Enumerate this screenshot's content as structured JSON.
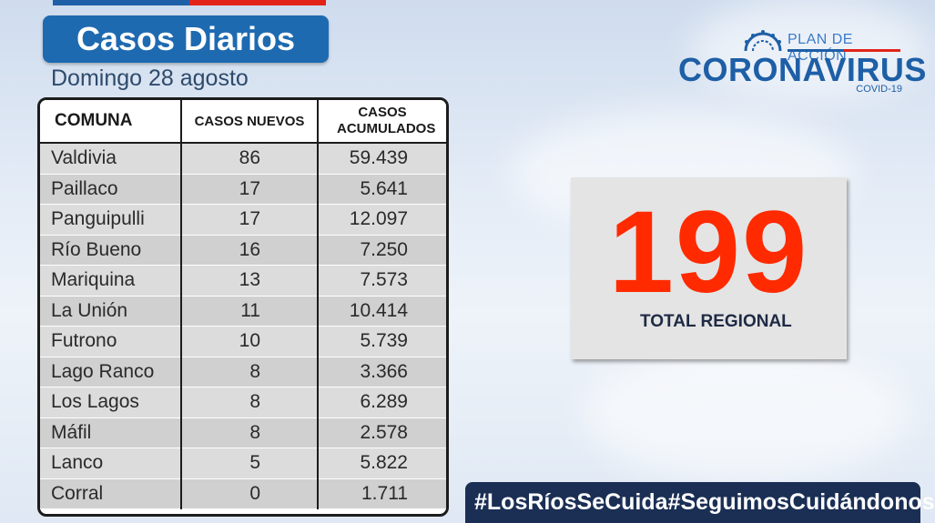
{
  "header": {
    "title": "Casos Diarios",
    "subtitle": "Domingo 28 agosto"
  },
  "logo": {
    "line1": "PLAN DE ACCIÓN",
    "line2": "CORONAVIRUS",
    "line3": "COVID-19"
  },
  "table": {
    "headers": [
      "COMUNA",
      "CASOS NUEVOS",
      "CASOS ACUMULADOS"
    ],
    "rows": [
      [
        "Valdivia",
        "86",
        "59.439"
      ],
      [
        "Paillaco",
        "17",
        "5.641"
      ],
      [
        "Panguipulli",
        "17",
        "12.097"
      ],
      [
        "Río Bueno",
        "16",
        "7.250"
      ],
      [
        "Mariquina",
        "13",
        "7.573"
      ],
      [
        "La Unión",
        "11",
        "10.414"
      ],
      [
        "Futrono",
        "10",
        "5.739"
      ],
      [
        "Lago Ranco",
        "8",
        "3.366"
      ],
      [
        "Los Lagos",
        "8",
        "6.289"
      ],
      [
        "Máfil",
        "8",
        "2.578"
      ],
      [
        "Lanco",
        "5",
        "5.822"
      ],
      [
        "Corral",
        "0",
        "1.711"
      ]
    ]
  },
  "total": {
    "value": "199",
    "label": "TOTAL REGIONAL"
  },
  "footer": {
    "hashtag1": "#LosRíosSeCuida",
    "hashtag2": "#SeguimosCuidándonos"
  },
  "colors": {
    "primary_blue": "#1e6ab0",
    "accent_red": "#ff2a00",
    "footer_navy": "#1b2f55"
  }
}
